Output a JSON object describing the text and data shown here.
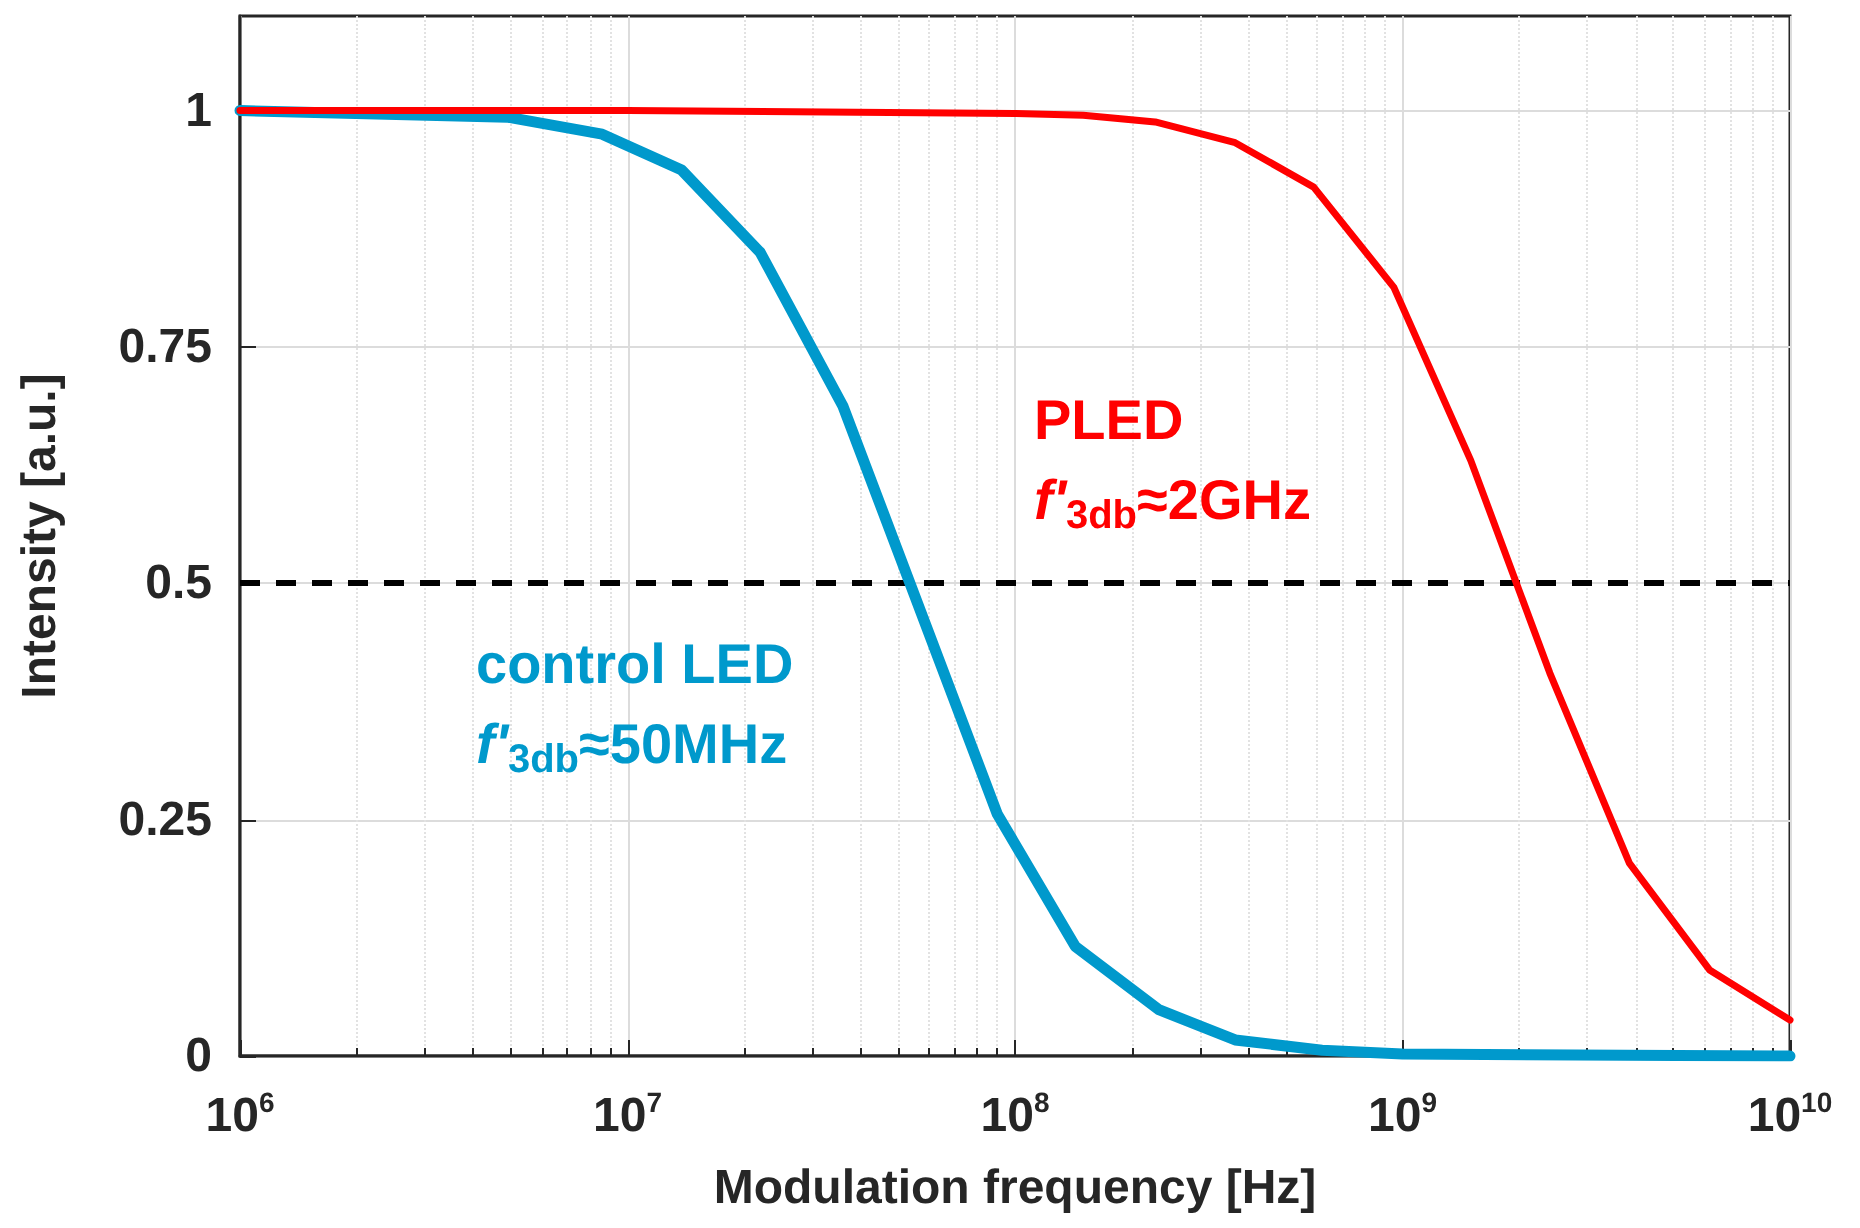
{
  "chart_data": {
    "type": "line",
    "xlabel": "Modulation frequency [Hz]",
    "ylabel": "Intensity [a.u.]",
    "log": "x",
    "xlim": [
      1000000,
      10000000000
    ],
    "ylim": [
      0,
      1.1
    ],
    "xticks": [
      {
        "value": 1000000,
        "label": "10$^{6}$"
      },
      {
        "value": 10000000,
        "label": "10$^{7}$"
      },
      {
        "value": 100000000,
        "label": "10$^{8}$"
      },
      {
        "value": 1000000000,
        "label": "10$^{9}$"
      },
      {
        "value": 10000000000,
        "label": "10$^{10}$"
      }
    ],
    "yticks": [
      0,
      0.25,
      0.5,
      0.75,
      1
    ],
    "grid": true,
    "legend": false,
    "marker": "none",
    "line_style": "solid",
    "series": [
      {
        "name": "PLED",
        "color": "#ff0000",
        "x": [
          1000000,
          10000000,
          100000000,
          150000000,
          230000000,
          370000000,
          590000000,
          950000000,
          1500000000,
          2400000000,
          3850000000,
          6200000000,
          10000000000
        ],
        "values": [
          1,
          1,
          0.997,
          0.995,
          0.988,
          0.966,
          0.919,
          0.813,
          0.63,
          0.405,
          0.204,
          0.091,
          0.038
        ]
      },
      {
        "name": "control LED",
        "color": "#0099cc",
        "x": [
          1000000,
          4900000,
          8600000,
          13800000,
          22000000,
          36000000,
          90000000,
          143000000,
          235000000,
          370000000,
          620000000,
          1000000000,
          10000000000
        ],
        "values": [
          1,
          0.993,
          0.975,
          0.937,
          0.85,
          0.687,
          0.256,
          0.116,
          0.049,
          0.017,
          0.006,
          0.002,
          0
        ]
      }
    ],
    "ref_lines": [
      {
        "axis": "y",
        "value": 0.5,
        "color": "#000000",
        "line_style": "dashed"
      }
    ],
    "annotations": [
      "f'$_{3db}$≈2GHz",
      "f'$_{3db}$≈50MHz"
    ]
  }
}
